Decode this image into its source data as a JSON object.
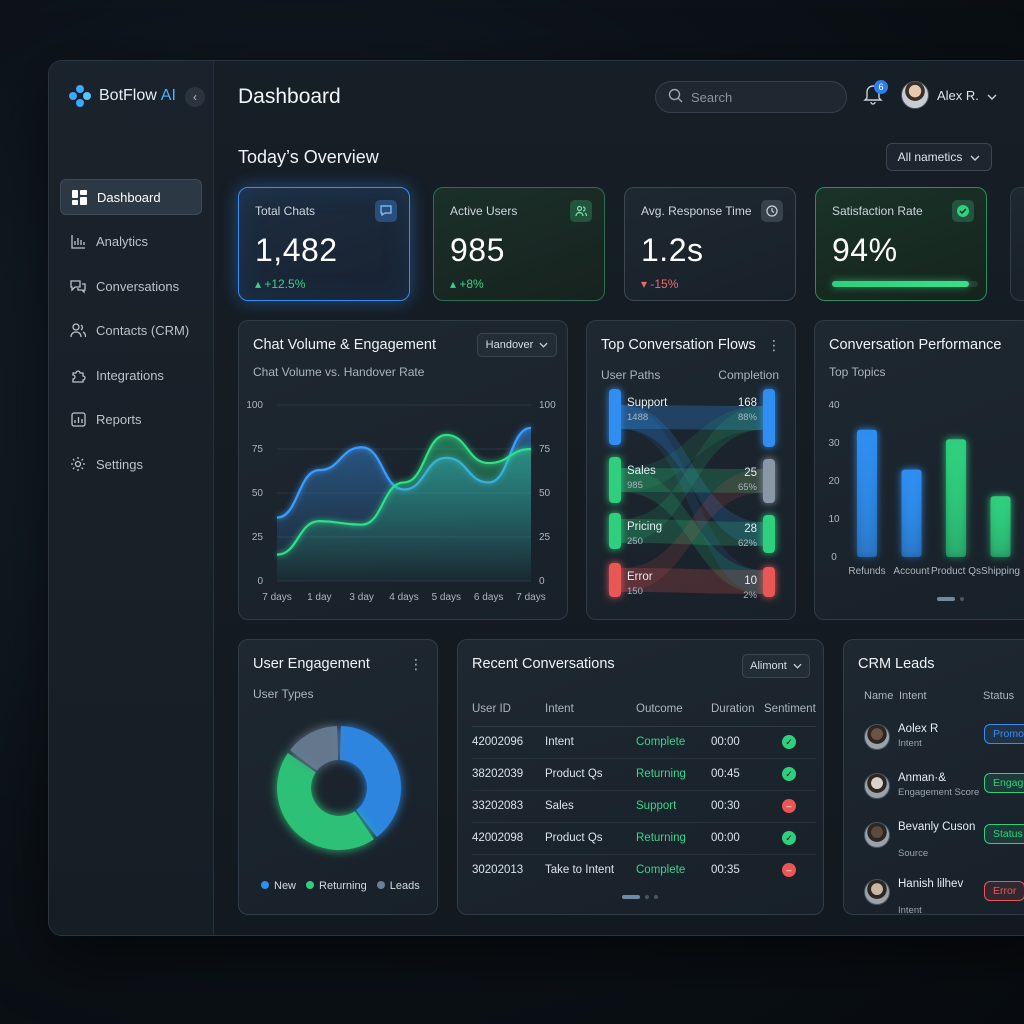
{
  "app": {
    "brand": "BotFlow",
    "brand_ai": "AI",
    "page_title": "Dashboard"
  },
  "sidebar": {
    "items": [
      {
        "label": "Dashboard",
        "icon": "grid-icon",
        "active": true
      },
      {
        "label": "Analytics",
        "icon": "bar-chart-icon"
      },
      {
        "label": "Conversations",
        "icon": "chat-bubbles-icon"
      },
      {
        "label": "Contacts (CRM)",
        "icon": "users-icon"
      },
      {
        "label": "Integrations",
        "icon": "puzzle-icon"
      },
      {
        "label": "Reports",
        "icon": "report-icon"
      },
      {
        "label": "Settings",
        "icon": "gear-icon"
      }
    ]
  },
  "header": {
    "search_placeholder": "Search",
    "notifications": "6",
    "user_name": "Alex R."
  },
  "overview": {
    "title": "Today’s Overview",
    "filter": "All nametics"
  },
  "kpis": [
    {
      "label": "Total Chats",
      "value": "1,482",
      "delta": "+12.5%",
      "trend": "up",
      "icon": "chat-icon"
    },
    {
      "label": "Active Users",
      "value": "985",
      "delta": "+8%",
      "trend": "up",
      "icon": "users-icon"
    },
    {
      "label": "Avg. Response Time",
      "value": "1.2s",
      "delta": "-15%",
      "trend": "down",
      "icon": "clock-icon"
    },
    {
      "label": "Satisfaction Rate",
      "value": "94%",
      "progress": 0.94,
      "icon": "check-icon"
    }
  ],
  "chat_volume": {
    "title": "Chat Volume & Engagement",
    "subtitle": "Chat Volume vs. Handover Rate",
    "select": "Handover"
  },
  "flows": {
    "title": "Top Conversation Flows",
    "col_left": "User Paths",
    "col_right": "Completion",
    "left": [
      {
        "name": "Support",
        "count": "1488",
        "color": "#2f8ef0"
      },
      {
        "name": "Sales",
        "count": "985",
        "color": "#2fcf7e"
      },
      {
        "name": "Pricing",
        "count": "250",
        "color": "#2fcf7e"
      },
      {
        "name": "Error",
        "count": "150",
        "color": "#e85656"
      }
    ],
    "right": [
      {
        "count": "168",
        "pct": "88%",
        "color": "#2f8ef0"
      },
      {
        "count": "25",
        "pct": "65%",
        "color": "#8a97a6"
      },
      {
        "count": "28",
        "pct": "62%",
        "color": "#2fcf7e"
      },
      {
        "count": "10",
        "pct": "2%",
        "color": "#e85656"
      }
    ]
  },
  "performance": {
    "title": "Conversation Performance",
    "subtitle": "Top Topics"
  },
  "engagement": {
    "title": "User Engagement",
    "subtitle": "User Types"
  },
  "recent": {
    "title": "Recent Conversations",
    "select": "Alimont",
    "columns": [
      "User ID",
      "Intent",
      "Outcome",
      "Duration",
      "Sentiment"
    ],
    "rows": [
      {
        "id": "42002096",
        "intent": "Intent",
        "outcome": "Complete",
        "duration": "00:00",
        "sentiment": "positive"
      },
      {
        "id": "38202039",
        "intent": "Product Qs",
        "outcome": "Returning",
        "duration": "00:45",
        "sentiment": "positive"
      },
      {
        "id": "33202083",
        "intent": "Sales",
        "outcome": "Support",
        "duration": "00:30",
        "sentiment": "negative"
      },
      {
        "id": "42002098",
        "intent": "Product Qs",
        "outcome": "Returning",
        "duration": "00:00",
        "sentiment": "positive"
      },
      {
        "id": "30202013",
        "intent": "Take to Intent",
        "outcome": "Complete",
        "duration": "00:35",
        "sentiment": "negative"
      }
    ]
  },
  "crm": {
    "title": "CRM Leads",
    "columns": [
      "Name",
      "Intent",
      "Status"
    ],
    "rows": [
      {
        "name": "Aolex R",
        "sub": "Intent",
        "status": "Promote",
        "status_color": "#3a8cf0"
      },
      {
        "name": "Anman·& ",
        "sub": "Engagement Score",
        "status": "Engager",
        "status_color": "#2fcf7e"
      },
      {
        "name": "Bevanly Cuson",
        "sub": "Source",
        "status": "Status",
        "status_color": "#2fcf7e"
      },
      {
        "name": "Hanish lilhev",
        "sub": "Intent",
        "status": "Error",
        "status_color": "#e85656"
      }
    ]
  },
  "chart_data": [
    {
      "type": "area",
      "title": "Chat Volume & Engagement",
      "subtitle": "Chat Volume vs. Handover Rate",
      "categories": [
        "7 days",
        "1 day",
        "3 day",
        "4 days",
        "5 days",
        "6 days",
        "7 days"
      ],
      "ylim": [
        0,
        100
      ],
      "yticks": [
        0,
        25,
        50,
        75,
        100
      ],
      "series": [
        {
          "name": "",
          "color": "#3b9dff",
          "values": [
            36,
            63,
            76,
            52,
            70,
            56,
            87
          ]
        },
        {
          "name": "",
          "color": "#2fe08a",
          "values": [
            15,
            34,
            32,
            56,
            83,
            67,
            75
          ]
        }
      ]
    },
    {
      "type": "bar",
      "title": "Conversation Performance",
      "subtitle": "Top Topics",
      "categories": [
        "Refunds",
        "Account",
        "Product Qs",
        "Shipping"
      ],
      "values": [
        33.5,
        23,
        31,
        16
      ],
      "colors": [
        "#2f8ef0",
        "#2f8ef0",
        "#2fcf7e",
        "#2fcf7e"
      ],
      "ylim": [
        0,
        40
      ],
      "yticks": [
        0,
        10,
        20,
        30,
        40
      ]
    },
    {
      "type": "pie",
      "title": "User Engagement",
      "subtitle": "User Types",
      "labels": [
        "New",
        "Returning",
        "Leads"
      ],
      "values": [
        40,
        45,
        15
      ],
      "colors": [
        "#2f8ef0",
        "#2fcf7e",
        "#6b7f96"
      ]
    }
  ]
}
